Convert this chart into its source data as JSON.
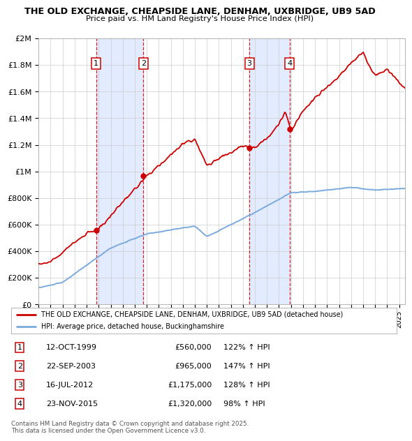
{
  "title": "THE OLD EXCHANGE, CHEAPSIDE LANE, DENHAM, UXBRIDGE, UB9 5AD",
  "subtitle": "Price paid vs. HM Land Registry's House Price Index (HPI)",
  "ylabel_ticks": [
    "£0",
    "£200K",
    "£400K",
    "£600K",
    "£800K",
    "£1M",
    "£1.2M",
    "£1.4M",
    "£1.6M",
    "£1.8M",
    "£2M"
  ],
  "ytick_values": [
    0,
    200000,
    400000,
    600000,
    800000,
    1000000,
    1200000,
    1400000,
    1600000,
    1800000,
    2000000
  ],
  "ylim": [
    0,
    2000000
  ],
  "xlim_start": 1995.0,
  "xlim_end": 2025.5,
  "sale_events": [
    {
      "num": 1,
      "date": "12-OCT-1999",
      "year": 1999.78,
      "price": 560000,
      "hpi_pct": "122% ↑ HPI"
    },
    {
      "num": 2,
      "date": "22-SEP-2003",
      "year": 2003.72,
      "price": 965000,
      "hpi_pct": "147% ↑ HPI"
    },
    {
      "num": 3,
      "date": "16-JUL-2012",
      "year": 2012.54,
      "price": 1175000,
      "hpi_pct": "128% ↑ HPI"
    },
    {
      "num": 4,
      "date": "23-NOV-2015",
      "year": 2015.89,
      "price": 1320000,
      "hpi_pct": "98% ↑ HPI"
    }
  ],
  "legend_line1": "THE OLD EXCHANGE, CHEAPSIDE LANE, DENHAM, UXBRIDGE, UB9 5AD (detached house)",
  "legend_line2": "HPI: Average price, detached house, Buckinghamshire",
  "footer_line1": "Contains HM Land Registry data © Crown copyright and database right 2025.",
  "footer_line2": "This data is licensed under the Open Government Licence v3.0.",
  "red_color": "#cc0000",
  "blue_color": "#7aaadd",
  "grid_color": "#cccccc",
  "shade_color": "#dde8ff"
}
